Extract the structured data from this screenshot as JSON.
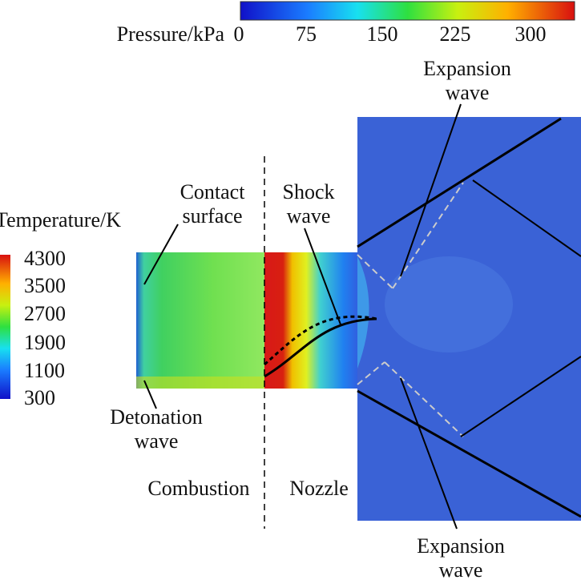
{
  "pressure_legend": {
    "title": "Pressure/kPa",
    "ticks": [
      0,
      75,
      150,
      225,
      300
    ]
  },
  "temperature_legend": {
    "title": "Temperature/K",
    "ticks": [
      4300,
      3500,
      2700,
      1900,
      1100,
      300
    ]
  },
  "annotations": [
    {
      "lines": [
        "Expansion",
        "wave"
      ]
    },
    {
      "lines": [
        "Contact",
        "surface"
      ]
    },
    {
      "lines": [
        "Shock",
        "wave"
      ]
    },
    {
      "lines": [
        "Detonation",
        "wave"
      ]
    },
    {
      "lines": [
        "Expansion",
        "wave"
      ]
    }
  ],
  "regions": [
    "Combustion",
    "Nozzle"
  ]
}
